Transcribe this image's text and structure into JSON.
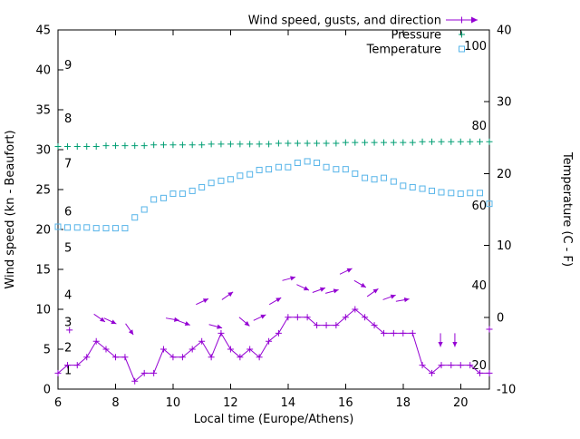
{
  "chart_data": {
    "type": "line",
    "title": "",
    "xlabel": "Local time (Europe/Athens)",
    "ylabel_left": "Wind speed (kn - Beaufort)",
    "ylabel_right": "Temperature (C - F)",
    "x_range": [
      6,
      21
    ],
    "y_left_range": [
      0,
      45
    ],
    "y_right_range": [
      -10,
      40
    ],
    "x_ticks": [
      6,
      8,
      10,
      12,
      14,
      16,
      18,
      20
    ],
    "y_left_ticks": [
      0,
      5,
      10,
      15,
      20,
      25,
      30,
      35,
      40,
      45
    ],
    "y_right_ticks": [
      -10,
      0,
      10,
      20,
      30,
      40
    ],
    "grid": false,
    "legend_position": "top-right",
    "beaufort_labels": [
      {
        "label": "1",
        "kn": 2.4
      },
      {
        "label": "2",
        "kn": 5.2
      },
      {
        "label": "3",
        "kn": 8.4
      },
      {
        "label": "4",
        "kn": 11.8
      },
      {
        "label": "5",
        "kn": 17.7
      },
      {
        "label": "6",
        "kn": 22.3
      },
      {
        "label": "7",
        "kn": 28.3
      },
      {
        "label": "8",
        "kn": 33.9
      },
      {
        "label": "9",
        "kn": 40.6
      }
    ],
    "fahrenheit_labels": [
      {
        "label": "20",
        "f": 20
      },
      {
        "label": "40",
        "f": 40
      },
      {
        "label": "60",
        "f": 60
      },
      {
        "label": "80",
        "f": 80
      },
      {
        "label": "100",
        "f": 100
      }
    ],
    "legend": [
      {
        "id": "wind",
        "label": "Wind speed, gusts, and direction"
      },
      {
        "id": "pressure",
        "label": "Pressure"
      },
      {
        "id": "temperature",
        "label": "Temperature"
      }
    ],
    "colors": {
      "wind": "#9400d3",
      "pressure": "#009e73",
      "temperature": "#56b4e9",
      "axis": "#000000",
      "background": "#ffffff"
    },
    "series": [
      {
        "id": "wind_speed",
        "name": "Wind speed",
        "axis": "left",
        "style": "linespoints-plus",
        "color_key": "wind",
        "t": [
          6,
          6.33,
          6.67,
          7,
          7.33,
          7.67,
          8,
          8.33,
          8.67,
          9,
          9.33,
          9.67,
          10,
          10.33,
          10.67,
          11,
          11.33,
          11.67,
          12,
          12.33,
          12.67,
          13,
          13.33,
          13.67,
          14,
          14.33,
          14.67,
          15,
          15.33,
          15.67,
          16,
          16.33,
          16.67,
          17,
          17.33,
          17.67,
          18,
          18.33,
          18.67,
          19,
          19.33,
          19.67,
          20,
          20.33,
          20.67,
          21
        ],
        "v": [
          2,
          3,
          3,
          4,
          6,
          5,
          4,
          4,
          1,
          2,
          2,
          5,
          4,
          4,
          5,
          6,
          4,
          7,
          5,
          4,
          5,
          4,
          6,
          7,
          9,
          9,
          9,
          8,
          8,
          8,
          9,
          10,
          9,
          8,
          7,
          7,
          7,
          7,
          3,
          2,
          3,
          3,
          3,
          3,
          2,
          2
        ]
      },
      {
        "id": "wind_vectors",
        "name": "Wind gusts and direction",
        "axis": "left",
        "style": "vectors",
        "color_key": "wind",
        "t": [
          6.4,
          7.25,
          7.6,
          8.35,
          9.75,
          10.15,
          10.8,
          11.25,
          11.7,
          12.3,
          12.8,
          13.35,
          13.8,
          14.3,
          14.85,
          15.3,
          15.8,
          16.3,
          16.75,
          17.3,
          17.75,
          19.3,
          19.8,
          21
        ],
        "v": [
          7.4,
          9.4,
          8.9,
          8.2,
          8.9,
          8.6,
          10.6,
          8.1,
          11.2,
          9.0,
          8.6,
          10.6,
          13.6,
          13.1,
          12.1,
          12.0,
          14.4,
          13.6,
          11.6,
          11.2,
          11.0,
          7.0,
          7.0,
          7.5
        ],
        "dir": [
          null,
          -35,
          -25,
          -55,
          -10,
          -20,
          25,
          -15,
          35,
          -40,
          25,
          30,
          15,
          -25,
          20,
          15,
          25,
          -30,
          35,
          20,
          10,
          -90,
          -90,
          null
        ]
      },
      {
        "id": "pressure",
        "name": "Pressure",
        "axis": "left",
        "style": "points-plus",
        "color_key": "pressure",
        "t": [
          6,
          6.33,
          6.67,
          7,
          7.33,
          7.67,
          8,
          8.33,
          8.67,
          9,
          9.33,
          9.67,
          10,
          10.33,
          10.67,
          11,
          11.33,
          11.67,
          12,
          12.33,
          12.67,
          13,
          13.33,
          13.67,
          14,
          14.33,
          14.67,
          15,
          15.33,
          15.67,
          16,
          16.33,
          16.67,
          17,
          17.33,
          17.67,
          18,
          18.33,
          18.67,
          19,
          19.33,
          19.67,
          20,
          20.33,
          20.67,
          21
        ],
        "v": [
          30.4,
          30.4,
          30.4,
          30.4,
          30.4,
          30.5,
          30.5,
          30.5,
          30.5,
          30.5,
          30.6,
          30.6,
          30.6,
          30.6,
          30.6,
          30.6,
          30.7,
          30.7,
          30.7,
          30.7,
          30.7,
          30.7,
          30.7,
          30.8,
          30.8,
          30.8,
          30.8,
          30.8,
          30.8,
          30.8,
          30.9,
          30.9,
          30.9,
          30.9,
          30.9,
          30.9,
          30.9,
          30.9,
          31.0,
          31.0,
          31.0,
          31.0,
          31.0,
          31.0,
          31.0,
          31.0
        ]
      },
      {
        "id": "temperature",
        "name": "Temperature",
        "axis": "right",
        "style": "points-square",
        "color_key": "temperature",
        "t": [
          6,
          6.33,
          6.67,
          7,
          7.33,
          7.67,
          8,
          8.33,
          8.67,
          9,
          9.33,
          9.67,
          10,
          10.33,
          10.67,
          11,
          11.33,
          11.67,
          12,
          12.33,
          12.67,
          13,
          13.33,
          13.67,
          14,
          14.33,
          14.67,
          15,
          15.33,
          15.67,
          16,
          16.33,
          16.67,
          17,
          17.33,
          17.67,
          18,
          18.33,
          18.67,
          19,
          19.33,
          19.67,
          20,
          20.33,
          20.67,
          21
        ],
        "v": [
          12.6,
          12.5,
          12.5,
          12.5,
          12.4,
          12.4,
          12.4,
          12.4,
          13.9,
          15.0,
          16.4,
          16.6,
          17.2,
          17.2,
          17.6,
          18.1,
          18.7,
          19.0,
          19.2,
          19.7,
          19.9,
          20.5,
          20.6,
          20.9,
          20.9,
          21.5,
          21.7,
          21.5,
          20.9,
          20.6,
          20.6,
          20.0,
          19.4,
          19.2,
          19.4,
          18.9,
          18.3,
          18.1,
          17.9,
          17.6,
          17.4,
          17.3,
          17.2,
          17.3,
          17.3,
          15.8
        ]
      }
    ]
  }
}
